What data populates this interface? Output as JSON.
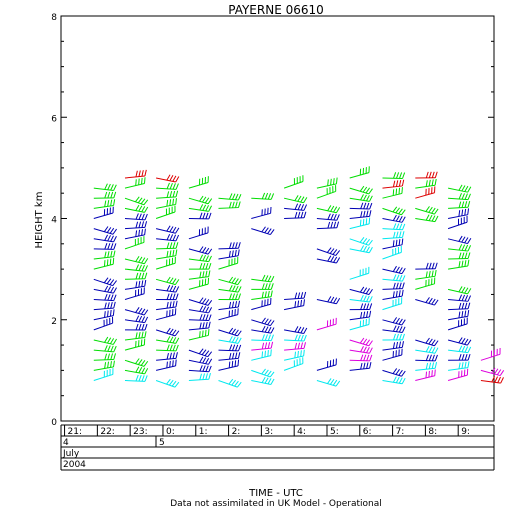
{
  "chart_data": {
    "type": "scatter",
    "title": "PAYERNE 06610",
    "ylabel": "HEIGHT km",
    "ylim": [
      0,
      8
    ],
    "yticks": [
      0,
      2,
      4,
      6,
      8
    ],
    "xlabel": "TIME - UTC",
    "x_unit": "hour UTC",
    "xlim": [
      20.8,
      10.0
    ],
    "hour_labels": [
      "21:",
      "22:",
      "23:",
      "0:",
      "1:",
      "2:",
      "3:",
      "4:",
      "5:",
      "6:",
      "7:",
      "8:",
      "9:"
    ],
    "date_rows": [
      {
        "day_start": "4",
        "day_next": "5"
      },
      {
        "month": "July"
      },
      {
        "year": "2004"
      }
    ],
    "footnote": "Data not assimilated in UK Model - Operational",
    "grid": false,
    "colors": {
      "green": "#00dd00",
      "blue": "#0000b4",
      "cyan": "#00e8ee",
      "magenta": "#dd00dd",
      "red": "#dd0000"
    },
    "wind_barbs": {
      "columns_hours": [
        21.8,
        22.75,
        23.7,
        0.7,
        1.6,
        2.6,
        3.6,
        4.6,
        5.6,
        6.6,
        7.6,
        8.6
      ],
      "heights_km": [
        0.8,
        1.0,
        1.2,
        1.4,
        1.6,
        1.8,
        2.0,
        2.2,
        2.4,
        2.6,
        2.8,
        3.0,
        3.2,
        3.4,
        3.6,
        3.8,
        4.0,
        4.2,
        4.4,
        4.6,
        4.8
      ],
      "columns": [
        [
          "cyan",
          "green",
          "green",
          "green",
          "green",
          "blue",
          "blue",
          "blue",
          "blue",
          "blue",
          "blue",
          "green",
          "green",
          "blue",
          "blue",
          "blue",
          "blue",
          "green",
          "green",
          "green",
          ""
        ],
        [
          "cyan",
          "green",
          "green",
          "green",
          "green",
          "blue",
          "blue",
          "blue",
          "blue",
          "blue",
          "green",
          "green",
          "green",
          "green",
          "blue",
          "blue",
          "blue",
          "green",
          "green",
          "green",
          "red"
        ],
        [
          "cyan",
          "blue",
          "blue",
          "green",
          "green",
          "blue",
          "blue",
          "blue",
          "blue",
          "blue",
          "green",
          "green",
          "green",
          "green",
          "blue",
          "blue",
          "green",
          "green",
          "green",
          "green",
          "red"
        ],
        [
          "cyan",
          "blue",
          "blue",
          "blue",
          "green",
          "blue",
          "blue",
          "blue",
          "blue",
          "green",
          "green",
          "green",
          "green",
          "blue",
          "blue",
          "",
          "blue",
          "green",
          "green",
          "green",
          ""
        ],
        [
          "cyan",
          "blue",
          "blue",
          "blue",
          "cyan",
          "blue",
          "blue",
          "blue",
          "green",
          "green",
          "green",
          "green",
          "blue",
          "blue",
          "",
          "",
          "",
          "green",
          "green",
          "",
          ""
        ],
        [
          "cyan",
          "cyan",
          "cyan",
          "magenta",
          "cyan",
          "blue",
          "blue",
          "blue",
          "green",
          "green",
          "green",
          "",
          "",
          "",
          "",
          "blue",
          "blue",
          "",
          "green",
          "",
          ""
        ],
        [
          "",
          "cyan",
          "cyan",
          "magenta",
          "cyan",
          "blue",
          "",
          "blue",
          "blue",
          "",
          "",
          "",
          "",
          "",
          "",
          "",
          "blue",
          "blue",
          "green",
          "green",
          ""
        ],
        [
          "cyan",
          "blue",
          "",
          "",
          "",
          "magenta",
          "",
          "",
          "blue",
          "",
          "",
          "",
          "blue",
          "blue",
          "",
          "blue",
          "blue",
          "green",
          "green",
          "green",
          ""
        ],
        [
          "",
          "blue",
          "magenta",
          "magenta",
          "magenta",
          "cyan",
          "blue",
          "blue",
          "cyan",
          "blue",
          "cyan",
          "",
          "",
          "cyan",
          "cyan",
          "cyan",
          "blue",
          "blue",
          "green",
          "green",
          "green"
        ],
        [
          "cyan",
          "blue",
          "blue",
          "blue",
          "cyan",
          "blue",
          "blue",
          "cyan",
          "blue",
          "blue",
          "cyan",
          "blue",
          "cyan",
          "blue",
          "cyan",
          "cyan",
          "blue",
          "green",
          "green",
          "red",
          "green"
        ],
        [
          "magenta",
          "cyan",
          "blue",
          "cyan",
          "blue",
          "",
          "",
          "",
          "blue",
          "green",
          "green",
          "blue",
          "",
          "",
          "",
          "",
          "green",
          "green",
          "red",
          "green",
          "red"
        ],
        [
          "magenta",
          "cyan",
          "blue",
          "cyan",
          "blue",
          "blue",
          "blue",
          "blue",
          "blue",
          "green",
          "",
          "green",
          "green",
          "green",
          "blue",
          "blue",
          "blue",
          "green",
          "green",
          "green",
          ""
        ]
      ],
      "extra_column": {
        "hour": 9.6,
        "points": [
          [
            0.8,
            "red"
          ],
          [
            1.0,
            "magenta"
          ],
          [
            1.2,
            "magenta"
          ]
        ]
      }
    }
  }
}
